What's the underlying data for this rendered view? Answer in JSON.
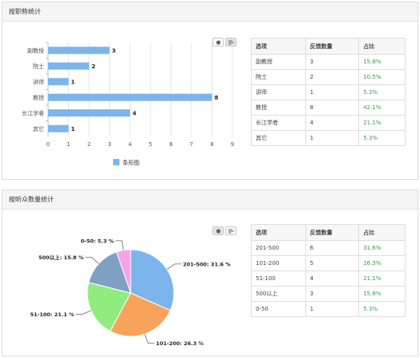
{
  "panel1": {
    "title": "按职称统计",
    "legend_label": "条形图",
    "table": {
      "headers": [
        "选项",
        "反馈数量",
        "占比"
      ],
      "rows": [
        [
          "副教授",
          "3",
          "15.8%"
        ],
        [
          "院士",
          "2",
          "10.5%"
        ],
        [
          "讲师",
          "1",
          "5.3%"
        ],
        [
          "教授",
          "8",
          "42.1%"
        ],
        [
          "长江学者",
          "4",
          "21.1%"
        ],
        [
          "其它",
          "1",
          "5.3%"
        ]
      ]
    }
  },
  "panel2": {
    "title": "按听众数量统计",
    "table": {
      "headers": [
        "选项",
        "反馈数量",
        "占比"
      ],
      "rows": [
        [
          "201-500",
          "6",
          "31.6%"
        ],
        [
          "101-200",
          "5",
          "26.3%"
        ],
        [
          "51-100",
          "4",
          "21.1%"
        ],
        [
          "500以上",
          "3",
          "15.8%"
        ],
        [
          "0-50",
          "1",
          "5.3%"
        ]
      ]
    }
  },
  "chart_data": [
    {
      "type": "bar",
      "orientation": "horizontal",
      "categories": [
        "副教授",
        "院士",
        "讲师",
        "教授",
        "长江学者",
        "其它"
      ],
      "series": [
        {
          "name": "条形图",
          "values": [
            3,
            2,
            1,
            8,
            4,
            1
          ],
          "color": "#7cb5ec"
        }
      ],
      "xlim": [
        0,
        9
      ],
      "xticks": [
        0,
        1,
        2,
        3,
        4,
        5,
        6,
        7,
        8,
        9
      ],
      "grid": true,
      "legend": "bottom-center"
    },
    {
      "type": "pie",
      "slices": [
        {
          "label": "201-500",
          "value": 31.6,
          "color": "#7cb5ec"
        },
        {
          "label": "101-200",
          "value": 26.3,
          "color": "#f7a35c"
        },
        {
          "label": "51-100",
          "value": 21.1,
          "color": "#90ed7d"
        },
        {
          "label": "500以上",
          "value": 15.8,
          "color": "#7f9fc4"
        },
        {
          "label": "0-50",
          "value": 5.3,
          "color": "#f5a3e8"
        }
      ],
      "label_format": "{label}: {value} %"
    }
  ]
}
